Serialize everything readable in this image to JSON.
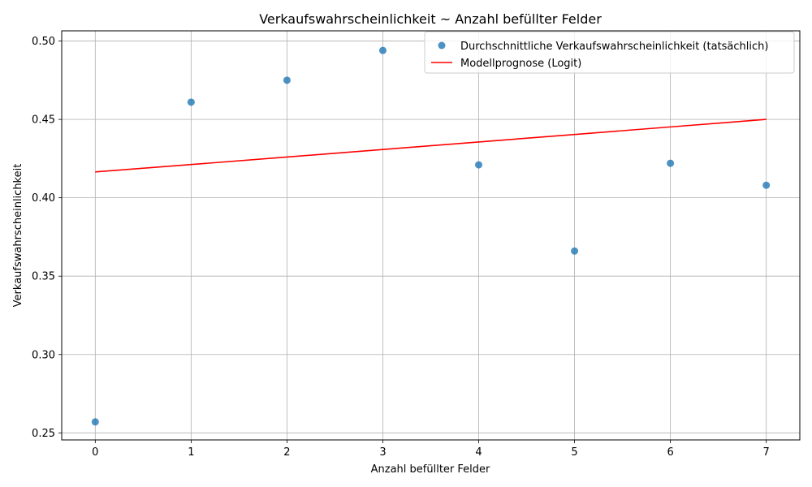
{
  "chart_data": {
    "type": "scatter",
    "title": "Verkaufswahrscheinlichkeit ~ Anzahl befüllter Felder",
    "xlabel": "Anzahl befüllter Felder",
    "ylabel": "Verkaufswahrscheinlichkeit",
    "xlim": [
      -0.35,
      7.35
    ],
    "ylim": [
      0.2455,
      0.5065
    ],
    "xticks": [
      0,
      1,
      2,
      3,
      4,
      5,
      6,
      7
    ],
    "yticks": [
      0.25,
      0.3,
      0.35,
      0.4,
      0.45,
      0.5
    ],
    "ytick_labels": [
      "0.25",
      "0.30",
      "0.35",
      "0.40",
      "0.45",
      "0.50"
    ],
    "grid": true,
    "legend_position": "top-right",
    "series": [
      {
        "name": "Durchschnittliche Verkaufswahrscheinlichkeit (tatsächlich)",
        "kind": "scatter",
        "color": "#1f77b4",
        "x": [
          0,
          1,
          2,
          3,
          4,
          5,
          6,
          7
        ],
        "y": [
          0.257,
          0.461,
          0.475,
          0.494,
          0.421,
          0.366,
          0.422,
          0.408
        ]
      },
      {
        "name": "Modellprognose (Logit)",
        "kind": "line",
        "color": "#ff0000",
        "x": [
          0,
          1,
          2,
          3,
          4,
          5,
          6,
          7
        ],
        "y": [
          0.4165,
          0.4212,
          0.426,
          0.4308,
          0.4356,
          0.4404,
          0.4452,
          0.45
        ]
      }
    ]
  }
}
